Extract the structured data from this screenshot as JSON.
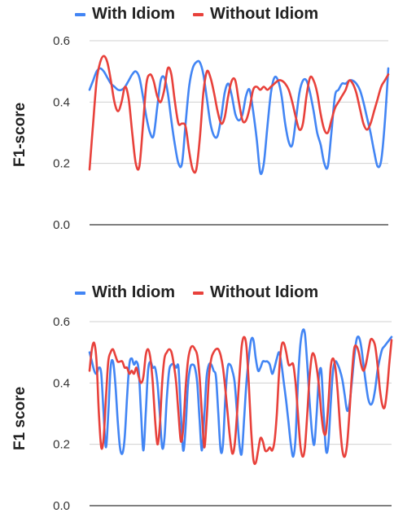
{
  "chart_data": [
    {
      "type": "line",
      "legend": [
        "With Idiom",
        "Without Idiom"
      ],
      "ylabel": "F1-score",
      "yticks": [
        "0.0",
        "0.2",
        "0.4",
        "0.6"
      ],
      "ylim": [
        0,
        0.6
      ],
      "grid": true,
      "x": [
        1,
        2,
        3,
        4,
        5,
        6,
        7,
        8,
        9,
        10,
        11,
        12,
        13,
        14,
        15,
        16,
        17,
        18,
        19,
        20,
        21,
        22,
        23,
        24,
        25,
        26,
        27,
        28,
        29,
        30,
        31,
        32,
        33,
        34,
        35,
        36,
        37,
        38,
        39,
        40,
        41,
        42,
        43,
        44,
        45,
        46,
        47,
        48,
        49,
        50,
        51,
        52,
        53,
        54,
        55,
        56,
        57,
        58,
        59,
        60,
        61,
        62,
        63,
        64,
        65,
        66,
        67,
        68,
        69,
        70,
        71,
        72,
        73,
        74,
        75,
        76,
        77,
        78,
        79,
        80,
        81,
        82,
        83,
        84,
        85
      ],
      "series": [
        {
          "name": "With Idiom",
          "color": "#4285f4",
          "values": [
            0.44,
            0.47,
            0.5,
            0.51,
            0.5,
            0.48,
            0.46,
            0.45,
            0.44,
            0.44,
            0.45,
            0.47,
            0.49,
            0.5,
            0.48,
            0.42,
            0.35,
            0.3,
            0.29,
            0.38,
            0.47,
            0.48,
            0.43,
            0.34,
            0.26,
            0.2,
            0.2,
            0.33,
            0.45,
            0.51,
            0.53,
            0.53,
            0.49,
            0.41,
            0.33,
            0.29,
            0.29,
            0.35,
            0.43,
            0.46,
            0.42,
            0.36,
            0.34,
            0.36,
            0.42,
            0.44,
            0.37,
            0.28,
            0.17,
            0.2,
            0.32,
            0.43,
            0.48,
            0.47,
            0.42,
            0.33,
            0.27,
            0.26,
            0.34,
            0.43,
            0.47,
            0.47,
            0.43,
            0.37,
            0.3,
            0.26,
            0.2,
            0.19,
            0.3,
            0.42,
            0.44,
            0.46,
            0.46,
            0.47,
            0.47,
            0.46,
            0.44,
            0.4,
            0.35,
            0.3,
            0.24,
            0.19,
            0.21,
            0.33,
            0.51
          ]
        },
        {
          "name": "Without Idiom",
          "color": "#e8413b",
          "values": [
            0.18,
            0.33,
            0.47,
            0.53,
            0.55,
            0.53,
            0.47,
            0.4,
            0.37,
            0.4,
            0.45,
            0.41,
            0.3,
            0.2,
            0.19,
            0.32,
            0.46,
            0.49,
            0.47,
            0.42,
            0.4,
            0.44,
            0.51,
            0.49,
            0.4,
            0.33,
            0.33,
            0.32,
            0.24,
            0.18,
            0.18,
            0.28,
            0.43,
            0.5,
            0.48,
            0.43,
            0.37,
            0.33,
            0.35,
            0.42,
            0.47,
            0.47,
            0.4,
            0.34,
            0.34,
            0.38,
            0.44,
            0.45,
            0.44,
            0.45,
            0.44,
            0.45,
            0.46,
            0.47,
            0.47,
            0.46,
            0.44,
            0.4,
            0.35,
            0.31,
            0.33,
            0.42,
            0.48,
            0.47,
            0.43,
            0.36,
            0.31,
            0.3,
            0.34,
            0.38,
            0.4,
            0.42,
            0.44,
            0.47,
            0.46,
            0.43,
            0.38,
            0.33,
            0.31,
            0.33,
            0.37,
            0.41,
            0.45,
            0.47,
            0.49
          ]
        }
      ]
    },
    {
      "type": "line",
      "legend": [
        "With Idiom",
        "Without Idiom"
      ],
      "ylabel": "F1 score",
      "yticks": [
        "0.0",
        "0.2",
        "0.4",
        "0.6"
      ],
      "ylim": [
        0,
        0.6
      ],
      "grid": true,
      "x": [
        1,
        2,
        3,
        4,
        5,
        6,
        7,
        8,
        9,
        10,
        11,
        12,
        13,
        14,
        15,
        16,
        17,
        18,
        19,
        20,
        21,
        22,
        23,
        24,
        25,
        26,
        27,
        28,
        29,
        30,
        31,
        32,
        33,
        34,
        35,
        36,
        37,
        38,
        39,
        40,
        41,
        42,
        43,
        44,
        45,
        46,
        47,
        48,
        49,
        50,
        51,
        52,
        53,
        54,
        55,
        56,
        57,
        58,
        59,
        60,
        61,
        62,
        63,
        64,
        65,
        66,
        67,
        68,
        69,
        70,
        71,
        72,
        73,
        74,
        75,
        76,
        77,
        78,
        79,
        80,
        81,
        82,
        83,
        84,
        85,
        86,
        87,
        88,
        89,
        90,
        91,
        92,
        93,
        94,
        95,
        96,
        97,
        98,
        99,
        100,
        101,
        102,
        103,
        104,
        105,
        106,
        107,
        108,
        109,
        110,
        111,
        112,
        113,
        114,
        115,
        116,
        117,
        118,
        119,
        120,
        121,
        122,
        123,
        124,
        125,
        126,
        127,
        128,
        129,
        130
      ],
      "series": [
        {
          "name": "With Idiom",
          "color": "#4285f4",
          "values": [
            0.5,
            0.47,
            0.44,
            0.43,
            0.45,
            0.43,
            0.3,
            0.19,
            0.3,
            0.45,
            0.47,
            0.4,
            0.28,
            0.19,
            0.17,
            0.22,
            0.35,
            0.46,
            0.48,
            0.46,
            0.47,
            0.44,
            0.3,
            0.18,
            0.3,
            0.44,
            0.47,
            0.45,
            0.45,
            0.4,
            0.3,
            0.19,
            0.22,
            0.35,
            0.44,
            0.46,
            0.46,
            0.45,
            0.45,
            0.3,
            0.18,
            0.25,
            0.39,
            0.45,
            0.46,
            0.45,
            0.4,
            0.28,
            0.18,
            0.29,
            0.42,
            0.46,
            0.46,
            0.44,
            0.42,
            0.3,
            0.18,
            0.2,
            0.35,
            0.45,
            0.46,
            0.44,
            0.4,
            0.3,
            0.2,
            0.17,
            0.28,
            0.4,
            0.48,
            0.54,
            0.54,
            0.48,
            0.44,
            0.45,
            0.47,
            0.47,
            0.47,
            0.46,
            0.43,
            0.45,
            0.48,
            0.5,
            0.46,
            0.4,
            0.34,
            0.27,
            0.2,
            0.16,
            0.22,
            0.4,
            0.52,
            0.57,
            0.56,
            0.46,
            0.34,
            0.24,
            0.2,
            0.3,
            0.42,
            0.44,
            0.3,
            0.18,
            0.2,
            0.33,
            0.44,
            0.47,
            0.46,
            0.44,
            0.41,
            0.36,
            0.31,
            0.33,
            0.4,
            0.48,
            0.54,
            0.55,
            0.52,
            0.46,
            0.4,
            0.35,
            0.33,
            0.34,
            0.38,
            0.44,
            0.48,
            0.51,
            0.52,
            0.53,
            0.54,
            0.55
          ]
        },
        {
          "name": "Without Idiom",
          "color": "#e8413b",
          "values": [
            0.44,
            0.51,
            0.53,
            0.47,
            0.3,
            0.19,
            0.22,
            0.35,
            0.47,
            0.5,
            0.51,
            0.49,
            0.47,
            0.47,
            0.47,
            0.45,
            0.45,
            0.43,
            0.44,
            0.43,
            0.45,
            0.42,
            0.4,
            0.42,
            0.49,
            0.51,
            0.48,
            0.4,
            0.28,
            0.2,
            0.26,
            0.4,
            0.48,
            0.5,
            0.51,
            0.5,
            0.46,
            0.4,
            0.3,
            0.21,
            0.25,
            0.38,
            0.47,
            0.51,
            0.52,
            0.51,
            0.49,
            0.42,
            0.3,
            0.19,
            0.28,
            0.42,
            0.48,
            0.5,
            0.51,
            0.51,
            0.49,
            0.45,
            0.38,
            0.3,
            0.22,
            0.17,
            0.2,
            0.3,
            0.42,
            0.52,
            0.55,
            0.52,
            0.4,
            0.25,
            0.15,
            0.14,
            0.18,
            0.22,
            0.21,
            0.18,
            0.18,
            0.19,
            0.18,
            0.21,
            0.3,
            0.44,
            0.52,
            0.53,
            0.5,
            0.46,
            0.46,
            0.46,
            0.4,
            0.3,
            0.2,
            0.16,
            0.19,
            0.3,
            0.42,
            0.49,
            0.49,
            0.45,
            0.39,
            0.3,
            0.24,
            0.24,
            0.33,
            0.45,
            0.48,
            0.45,
            0.37,
            0.26,
            0.18,
            0.16,
            0.2,
            0.3,
            0.42,
            0.51,
            0.52,
            0.5,
            0.46,
            0.44,
            0.46,
            0.5,
            0.54,
            0.54,
            0.52,
            0.46,
            0.38,
            0.33,
            0.32,
            0.37,
            0.46,
            0.54
          ]
        }
      ]
    }
  ]
}
